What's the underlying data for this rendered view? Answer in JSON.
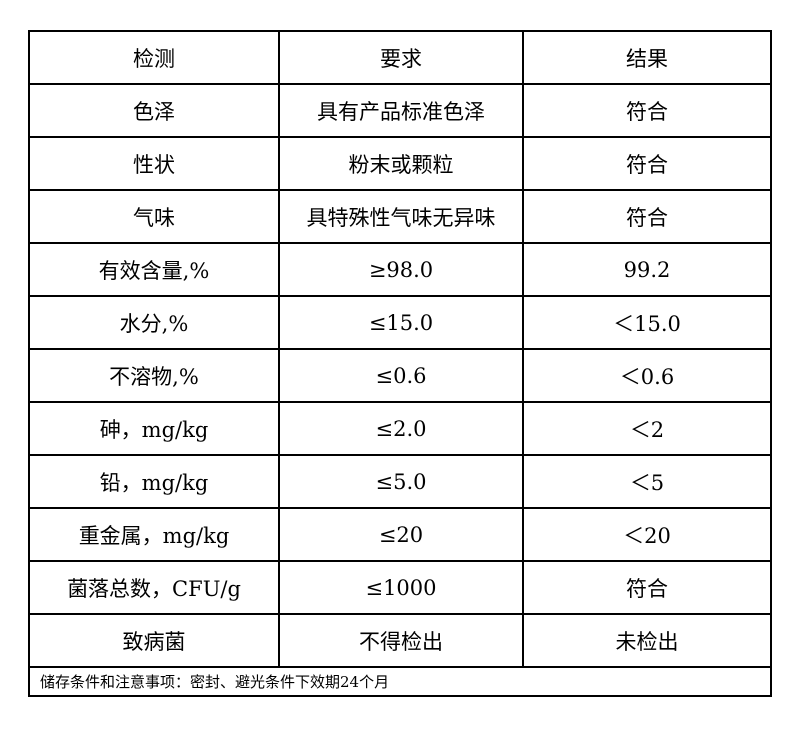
{
  "headers": [
    "检测",
    "要求",
    "结果"
  ],
  "rows": [
    [
      "色泽",
      "具有产品标准色泽",
      "符合"
    ],
    [
      "性状",
      "粉末或颗粒",
      "符合"
    ],
    [
      "气味",
      "具特殊性气味无异味",
      "符合"
    ],
    [
      "有效含量,%",
      "≥98.0",
      "99.2"
    ],
    [
      "水分,%",
      "≤15.0",
      "＜15.0"
    ],
    [
      "不溶物,%",
      "≤0.6",
      "＜0.6"
    ],
    [
      "砷，mg/kg",
      "≤2.0",
      "＜2"
    ],
    [
      "铅，mg/kg",
      "≤5.0",
      "＜5"
    ],
    [
      "重金属，mg/kg",
      "≤20",
      "＜20"
    ],
    [
      "菌落总数，CFU/g",
      "≤1000",
      "符合"
    ],
    [
      "致病菌",
      "不得检出",
      "未检出"
    ]
  ],
  "note": "储存条件和注意事项：密封、避光条件下效期24个月"
}
